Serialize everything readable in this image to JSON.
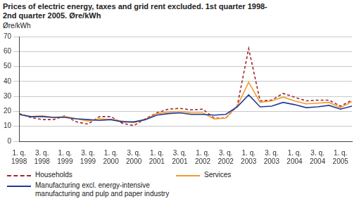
{
  "chart_data": {
    "type": "line",
    "title": [
      "Prices of electric energy, taxes and grid rent excluded. 1st quarter 1998-",
      "2nd quarter 2005. Øre/kWh"
    ],
    "y_label": "Øre/kWh",
    "categories": [
      "1. q. 1998",
      null,
      "3. q. 1998",
      null,
      "1. q. 1999",
      null,
      "3. q. 1999",
      null,
      "1. q. 2000",
      null,
      "3. q. 2000",
      null,
      "1. q. 2001",
      null,
      "3. q. 2001",
      null,
      "1. q. 2002",
      null,
      "3. q. 2002",
      null,
      "1. q. 2003",
      null,
      "3. q. 2003",
      null,
      "1. q. 2004",
      null,
      "3. q. 2004",
      null,
      "1. q. 2005",
      null
    ],
    "series": [
      {
        "name": "Households",
        "color": "#a3262c",
        "line_style": "dashed",
        "values": [
          18.5,
          16,
          14.5,
          14.5,
          17,
          13,
          11.5,
          16.5,
          16.5,
          12,
          10.5,
          15,
          19,
          21.5,
          22,
          21,
          21.5,
          15.5,
          15.5,
          23.5,
          62,
          27,
          27.5,
          32,
          29.5,
          27,
          27.5,
          27.5,
          23.5,
          27.5
        ]
      },
      {
        "name": "Services",
        "color": "#f39a2b",
        "line_style": "solid",
        "values": [
          18,
          16.5,
          17,
          16,
          16.5,
          15,
          13.5,
          15,
          14.5,
          13.5,
          12.5,
          14.5,
          18.5,
          19.5,
          20,
          19,
          19,
          15,
          15.5,
          23.5,
          39.5,
          26,
          27,
          29.5,
          27,
          25,
          25.5,
          26,
          22.5,
          26.5
        ]
      },
      {
        "name": "Manufacturing excl. energy-intensive manufacturing and pulp and paper industry",
        "color": "#1f3c96",
        "line_style": "solid",
        "values": [
          18,
          16.5,
          16.5,
          16,
          16,
          15,
          14.5,
          14,
          14.5,
          13,
          13,
          14.5,
          17.5,
          18.5,
          19,
          18,
          18,
          17.5,
          18,
          23,
          31,
          23,
          23.5,
          26,
          24.5,
          22.5,
          23,
          24,
          21.5,
          23.5
        ]
      }
    ],
    "ylim": [
      0,
      70
    ],
    "yticks": [
      0,
      10,
      20,
      30,
      40,
      50,
      60,
      70
    ],
    "grid": true,
    "legend": "bottom",
    "marker": "none"
  }
}
